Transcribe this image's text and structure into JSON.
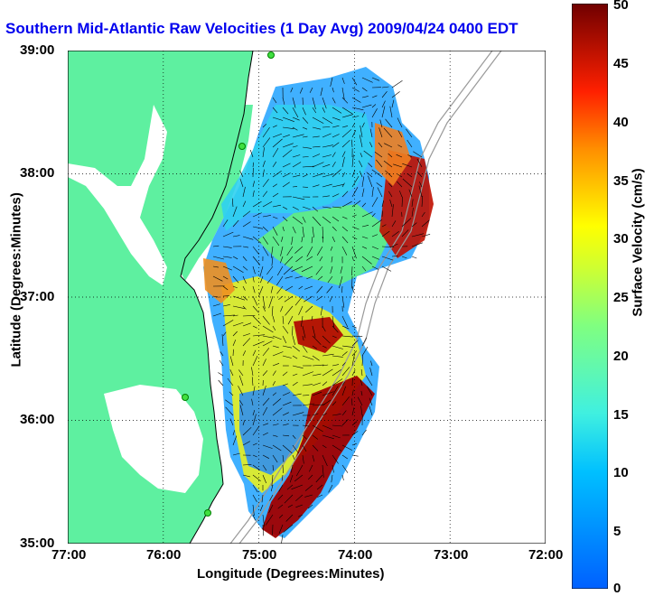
{
  "title": "Southern Mid-Atlantic Raw Velocities (1 Day Avg) 2009/04/24 0400 EDT",
  "x_label": "Longitude (Degrees:Minutes)",
  "y_label": "Latitude (Degrees:Minutes)",
  "colorbar_label": "Surface Velocity (cm/s)",
  "x_ticks": [
    "77:00",
    "76:00",
    "75:00",
    "74:00",
    "73:00",
    "72:00"
  ],
  "y_ticks": [
    "39:00",
    "38:00",
    "37:00",
    "36:00",
    "35:00"
  ],
  "colorbar_ticks": [
    "50",
    "45",
    "40",
    "35",
    "30",
    "25",
    "20",
    "15",
    "10",
    "5",
    "0"
  ],
  "colors": {
    "land": "#5ef0a0",
    "water": "#ffffff",
    "title": "#0000ee",
    "grid": "#000000"
  },
  "chart_data": {
    "type": "map",
    "title": "Southern Mid-Atlantic Raw Velocities (1 Day Avg) 2009/04/24 0400 EDT",
    "xlabel": "Longitude (Degrees:Minutes)",
    "ylabel": "Latitude (Degrees:Minutes)",
    "xlim": [
      -77,
      -72
    ],
    "ylim": [
      35,
      39
    ],
    "colorbar": {
      "label": "Surface Velocity (cm/s)",
      "range": [
        0,
        50
      ],
      "colormap": "jet"
    },
    "grid": true
  }
}
